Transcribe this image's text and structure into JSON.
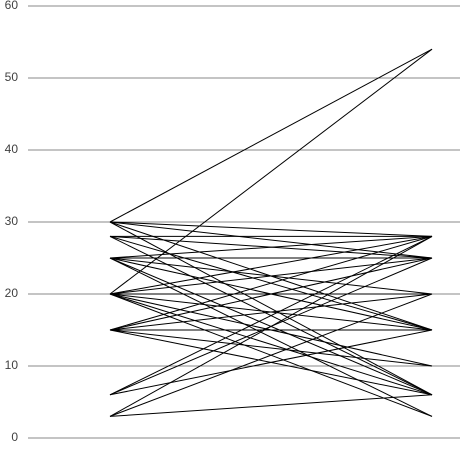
{
  "chart_data": {
    "type": "line",
    "categories": [
      null,
      null
    ],
    "ylim": [
      0,
      60
    ],
    "yticks": [
      0,
      10,
      20,
      30,
      40,
      50,
      60
    ],
    "grid": true,
    "series": [
      {
        "color": "#000000",
        "values": [
          30,
          54
        ]
      },
      {
        "color": "#000000",
        "values": [
          20,
          54
        ]
      },
      {
        "color": "#000000",
        "values": [
          30,
          28
        ]
      },
      {
        "color": "#000000",
        "values": [
          30,
          15
        ]
      },
      {
        "color": "#000000",
        "values": [
          30,
          6
        ]
      },
      {
        "color": "#000000",
        "values": [
          30,
          25
        ]
      },
      {
        "color": "#000000",
        "values": [
          28,
          28
        ]
      },
      {
        "color": "#000000",
        "values": [
          28,
          15
        ]
      },
      {
        "color": "#000000",
        "values": [
          28,
          6
        ]
      },
      {
        "color": "#000000",
        "values": [
          28,
          25
        ]
      },
      {
        "color": "#000000",
        "values": [
          25,
          25
        ]
      },
      {
        "color": "#000000",
        "values": [
          25,
          15
        ]
      },
      {
        "color": "#000000",
        "values": [
          25,
          6
        ]
      },
      {
        "color": "#000000",
        "values": [
          25,
          28
        ]
      },
      {
        "color": "#000000",
        "values": [
          25,
          3
        ]
      },
      {
        "color": "#000000",
        "values": [
          25,
          20
        ]
      },
      {
        "color": "#000000",
        "values": [
          20,
          28
        ]
      },
      {
        "color": "#000000",
        "values": [
          20,
          25
        ]
      },
      {
        "color": "#000000",
        "values": [
          20,
          15
        ]
      },
      {
        "color": "#000000",
        "values": [
          20,
          6
        ]
      },
      {
        "color": "#000000",
        "values": [
          20,
          20
        ]
      },
      {
        "color": "#000000",
        "values": [
          20,
          10
        ]
      },
      {
        "color": "#000000",
        "values": [
          20,
          3
        ]
      },
      {
        "color": "#000000",
        "values": [
          15,
          28
        ]
      },
      {
        "color": "#000000",
        "values": [
          15,
          25
        ]
      },
      {
        "color": "#000000",
        "values": [
          15,
          20
        ]
      },
      {
        "color": "#000000",
        "values": [
          15,
          15
        ]
      },
      {
        "color": "#000000",
        "values": [
          15,
          6
        ]
      },
      {
        "color": "#000000",
        "values": [
          15,
          10
        ]
      },
      {
        "color": "#000000",
        "values": [
          6,
          28
        ]
      },
      {
        "color": "#000000",
        "values": [
          6,
          25
        ]
      },
      {
        "color": "#000000",
        "values": [
          6,
          15
        ]
      },
      {
        "color": "#000000",
        "values": [
          3,
          28
        ]
      },
      {
        "color": "#000000",
        "values": [
          3,
          20
        ]
      },
      {
        "color": "#000000",
        "values": [
          3,
          6
        ]
      }
    ]
  }
}
